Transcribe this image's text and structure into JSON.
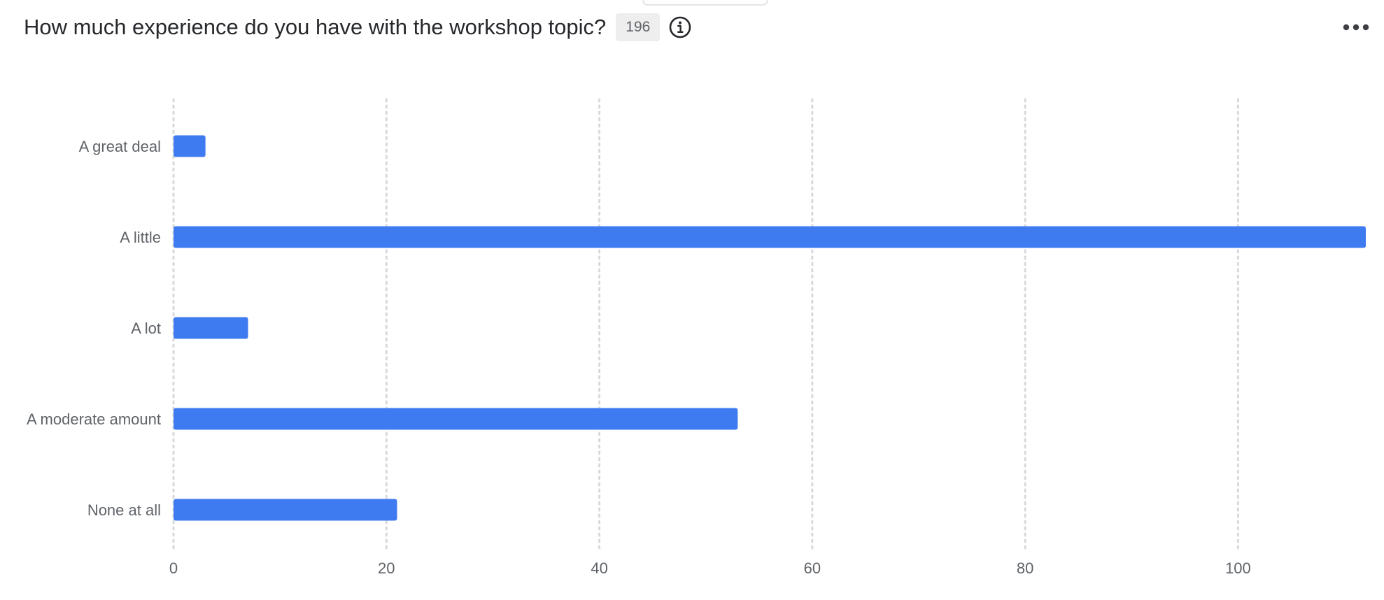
{
  "header": {
    "title": "How much experience do you have with the workshop topic?",
    "count": "196",
    "info_icon": "info-circle-icon",
    "more_icon": "more-horizontal-icon"
  },
  "colors": {
    "bar": "#3f7bf0",
    "grid": "#d9d9dc",
    "label": "#5f6368"
  },
  "chart_data": {
    "type": "bar",
    "orientation": "horizontal",
    "categories": [
      "A great deal",
      "A little",
      "A lot",
      "A moderate amount",
      "None at all"
    ],
    "values": [
      3,
      112,
      7,
      53,
      21
    ],
    "xlim": [
      0,
      112
    ],
    "xticks": [
      0,
      20,
      40,
      60,
      80,
      100
    ],
    "title": "How much experience do you have with the workshop topic?",
    "xlabel": "",
    "ylabel": "",
    "grid": "vertical dotted",
    "legend": "none"
  }
}
